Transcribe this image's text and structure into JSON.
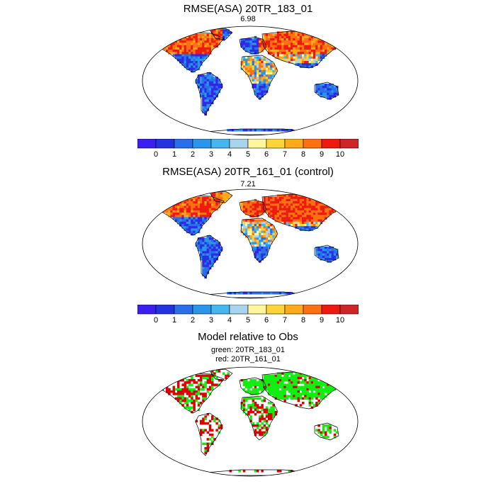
{
  "panels": [
    {
      "title": "RMSE(ASA) 20TR_183_01",
      "subtitle": "6.98",
      "scheme": "p1"
    },
    {
      "title": "RMSE(ASA) 20TR_161_01 (control)",
      "subtitle": "7.21",
      "scheme": "p2"
    },
    {
      "title": "Model relative to Obs",
      "subtitle_lines": [
        "green: 20TR_183_01",
        "red: 20TR_161_01"
      ],
      "scheme": "diff"
    }
  ],
  "colorbar": {
    "tick_labels": [
      "0",
      "1",
      "2",
      "3",
      "4",
      "5",
      "6",
      "7",
      "8",
      "9",
      "10"
    ],
    "colors": [
      "#3a1ff0",
      "#2233e0",
      "#2a6ee8",
      "#2a95ea",
      "#45b6ef",
      "#a8d4ee",
      "#fff59a",
      "#ffd43a",
      "#ffaa1a",
      "#ff7010",
      "#ee1a10",
      "#ce2626"
    ]
  },
  "diff_colors": {
    "green": "#11ee11",
    "red": "#dd0000"
  }
}
